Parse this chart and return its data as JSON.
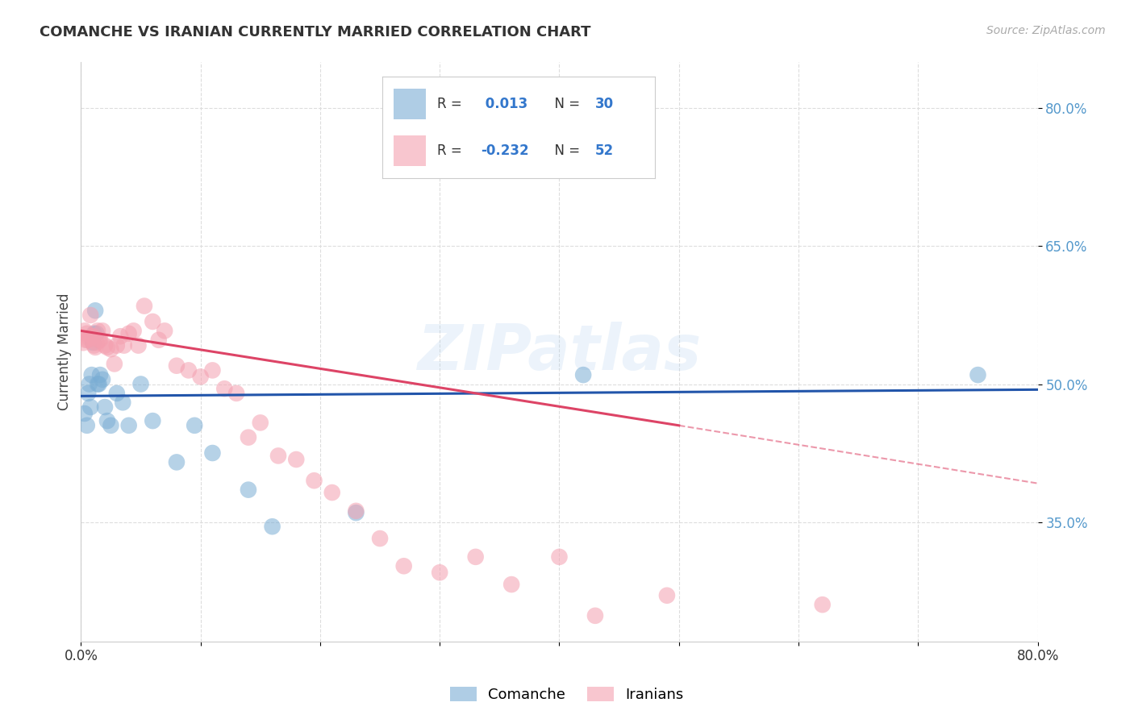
{
  "title": "COMANCHE VS IRANIAN CURRENTLY MARRIED CORRELATION CHART",
  "source": "Source: ZipAtlas.com",
  "ylabel": "Currently Married",
  "watermark": "ZIPatlas",
  "xlim": [
    0.0,
    0.8
  ],
  "ylim": [
    0.22,
    0.85
  ],
  "ytick_positions": [
    0.35,
    0.5,
    0.65,
    0.8
  ],
  "ytick_labels": [
    "35.0%",
    "50.0%",
    "65.0%",
    "80.0%"
  ],
  "comanche_R": 0.013,
  "comanche_N": 30,
  "iranian_R": -0.232,
  "iranian_N": 52,
  "comanche_color": "#7aadd4",
  "iranian_color": "#f4a0b0",
  "trend_comanche_color": "#2255aa",
  "trend_iranian_color": "#dd4466",
  "background_color": "#ffffff",
  "grid_color": "#dddddd",
  "comanche_x": [
    0.003,
    0.005,
    0.006,
    0.007,
    0.008,
    0.009,
    0.01,
    0.011,
    0.012,
    0.013,
    0.014,
    0.015,
    0.016,
    0.018,
    0.02,
    0.022,
    0.025,
    0.03,
    0.035,
    0.04,
    0.05,
    0.06,
    0.08,
    0.095,
    0.11,
    0.14,
    0.16,
    0.23,
    0.42,
    0.75
  ],
  "comanche_y": [
    0.468,
    0.455,
    0.49,
    0.5,
    0.475,
    0.51,
    0.545,
    0.555,
    0.58,
    0.555,
    0.5,
    0.5,
    0.51,
    0.505,
    0.475,
    0.46,
    0.455,
    0.49,
    0.48,
    0.455,
    0.5,
    0.46,
    0.415,
    0.455,
    0.425,
    0.385,
    0.345,
    0.36,
    0.51,
    0.51
  ],
  "iranian_x": [
    0.002,
    0.003,
    0.004,
    0.005,
    0.006,
    0.007,
    0.008,
    0.009,
    0.01,
    0.011,
    0.012,
    0.013,
    0.014,
    0.015,
    0.016,
    0.018,
    0.02,
    0.022,
    0.025,
    0.028,
    0.03,
    0.033,
    0.036,
    0.04,
    0.044,
    0.048,
    0.053,
    0.06,
    0.065,
    0.07,
    0.08,
    0.09,
    0.1,
    0.11,
    0.12,
    0.13,
    0.14,
    0.15,
    0.165,
    0.18,
    0.195,
    0.21,
    0.23,
    0.25,
    0.27,
    0.3,
    0.33,
    0.36,
    0.4,
    0.43,
    0.49,
    0.62
  ],
  "iranian_y": [
    0.545,
    0.558,
    0.548,
    0.555,
    0.548,
    0.55,
    0.575,
    0.552,
    0.552,
    0.542,
    0.54,
    0.545,
    0.558,
    0.548,
    0.548,
    0.558,
    0.542,
    0.54,
    0.538,
    0.522,
    0.542,
    0.552,
    0.542,
    0.555,
    0.558,
    0.542,
    0.585,
    0.568,
    0.548,
    0.558,
    0.52,
    0.515,
    0.508,
    0.515,
    0.495,
    0.49,
    0.442,
    0.458,
    0.422,
    0.418,
    0.395,
    0.382,
    0.362,
    0.332,
    0.302,
    0.295,
    0.312,
    0.282,
    0.312,
    0.248,
    0.27,
    0.26
  ],
  "trend_comanche_x0": 0.0,
  "trend_comanche_x1": 0.8,
  "trend_comanche_y0": 0.487,
  "trend_comanche_y1": 0.494,
  "trend_iranian_solid_x0": 0.0,
  "trend_iranian_solid_x1": 0.5,
  "trend_iranian_solid_y0": 0.558,
  "trend_iranian_solid_y1": 0.455,
  "trend_iranian_dash_x0": 0.5,
  "trend_iranian_dash_x1": 0.8,
  "trend_iranian_dash_y0": 0.455,
  "trend_iranian_dash_y1": 0.392
}
